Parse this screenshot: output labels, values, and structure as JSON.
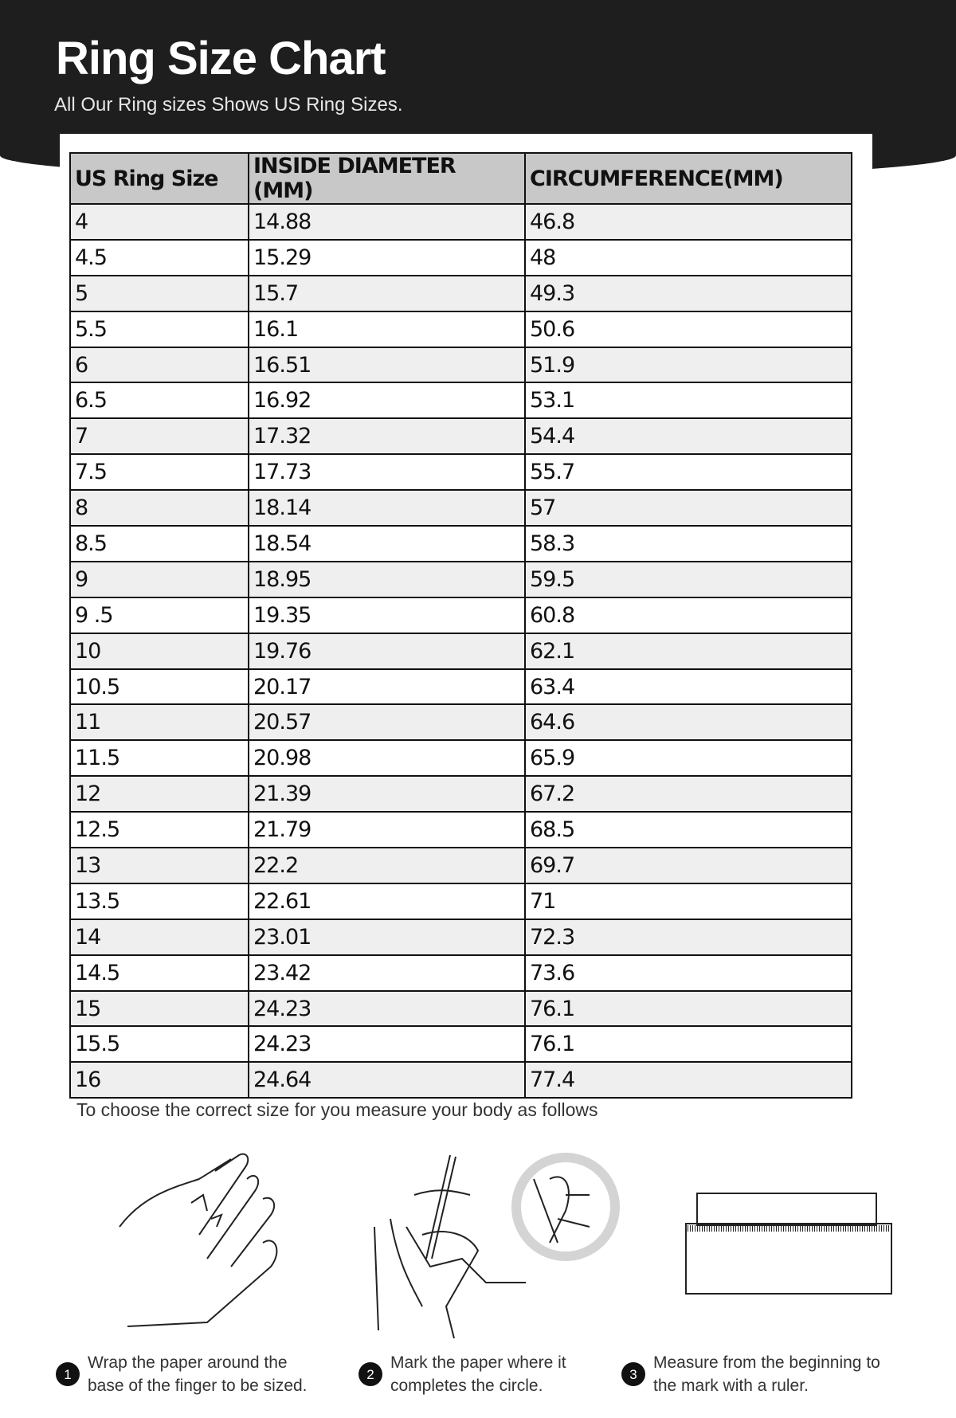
{
  "header": {
    "title": "Ring Size Chart",
    "subtitle": "All Our Ring sizes Shows US Ring Sizes."
  },
  "table": {
    "columns": [
      "US Ring Size",
      "INSIDE DIAMETER (MM)",
      "CIRCUMFERENCE(MM)"
    ],
    "rows": [
      [
        "4",
        "14.88",
        "46.8"
      ],
      [
        "4.5",
        "15.29",
        "48"
      ],
      [
        "5",
        "15.7",
        "49.3"
      ],
      [
        "5.5",
        "16.1",
        "50.6"
      ],
      [
        "6",
        "16.51",
        "51.9"
      ],
      [
        "6.5",
        "16.92",
        "53.1"
      ],
      [
        "7",
        "17.32",
        "54.4"
      ],
      [
        "7.5",
        "17.73",
        "55.7"
      ],
      [
        "8",
        "18.14",
        "57"
      ],
      [
        "8.5",
        "18.54",
        "58.3"
      ],
      [
        "9",
        "18.95",
        "59.5"
      ],
      [
        "9 .5",
        "19.35",
        "60.8"
      ],
      [
        "10",
        "19.76",
        "62.1"
      ],
      [
        "10.5",
        "20.17",
        "63.4"
      ],
      [
        "11",
        "20.57",
        "64.6"
      ],
      [
        "11.5",
        "20.98",
        "65.9"
      ],
      [
        "12",
        "21.39",
        "67.2"
      ],
      [
        "12.5",
        "21.79",
        "68.5"
      ],
      [
        "13",
        "22.2",
        "69.7"
      ],
      [
        "13.5",
        "22.61",
        "71"
      ],
      [
        "14",
        "23.01",
        "72.3"
      ],
      [
        "14.5",
        "23.42",
        "73.6"
      ],
      [
        "15",
        "24.23",
        "76.1"
      ],
      [
        "15.5",
        "24.23",
        "76.1"
      ],
      [
        "16",
        "24.64",
        "77.4"
      ]
    ]
  },
  "instructions": {
    "intro": "To choose the correct size for you measure your body as follows",
    "steps": [
      {
        "num": "1",
        "line1": "Wrap the paper around the",
        "line2": "base of the finger to be sized."
      },
      {
        "num": "2",
        "line1": "Mark the paper where it",
        "line2": "completes the circle."
      },
      {
        "num": "3",
        "line1": "Measure from the beginning to",
        "line2": "the mark with a ruler."
      }
    ]
  }
}
